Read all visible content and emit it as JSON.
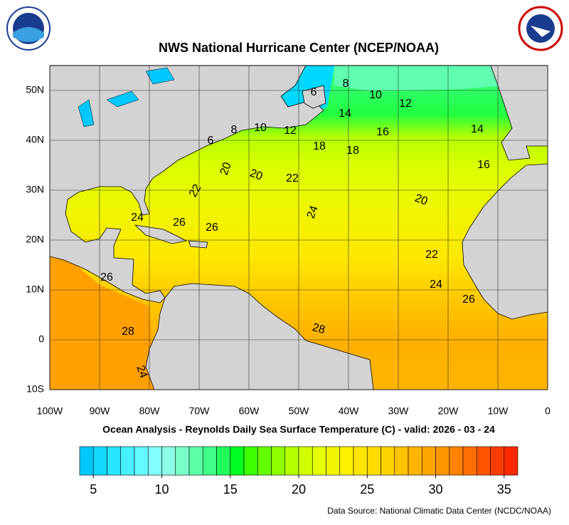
{
  "title": "NWS National Hurricane Center (NCEP/NOAA)",
  "subtitle": "Ocean Analysis - Reynolds Daily Sea Surface Temperature (C) - valid: 2026 - 03 - 24",
  "source": "Data Source: National Climatic Data Center (NCDC/NOAA)",
  "lat_labels": [
    "50N",
    "40N",
    "30N",
    "20N",
    "10N",
    "0",
    "10S"
  ],
  "lon_labels": [
    "100W",
    "90W",
    "80W",
    "70W",
    "60W",
    "50W",
    "40W",
    "30W",
    "20W",
    "10W",
    "0"
  ],
  "contour_labels": [
    "6",
    "8",
    "10",
    "12",
    "14",
    "16",
    "14",
    "16",
    "18",
    "18",
    "6",
    "8",
    "10",
    "12",
    "20",
    "20",
    "22",
    "22",
    "20",
    "24",
    "24",
    "26",
    "26",
    "22",
    "24",
    "26",
    "26",
    "28",
    "28",
    "24"
  ],
  "colorbar": {
    "range": [
      4,
      36
    ],
    "ticks": [
      5,
      10,
      15,
      20,
      25,
      30,
      35
    ],
    "colors": [
      "#00c8ff",
      "#14d8ff",
      "#28e6ff",
      "#46f0ff",
      "#64f8ff",
      "#82ffff",
      "#8cffe6",
      "#78ffc8",
      "#5cffa8",
      "#40ff88",
      "#20ff5a",
      "#00ff20",
      "#3cff00",
      "#64ff00",
      "#8cff00",
      "#b4ff00",
      "#d2ff00",
      "#e6ff00",
      "#f0f500",
      "#fff000",
      "#ffe600",
      "#ffdc00",
      "#ffd200",
      "#ffc300",
      "#ffb400",
      "#ffa500",
      "#ff9600",
      "#ff8200",
      "#ff6e00",
      "#ff5500",
      "#ff3c00",
      "#ff2800"
    ]
  }
}
